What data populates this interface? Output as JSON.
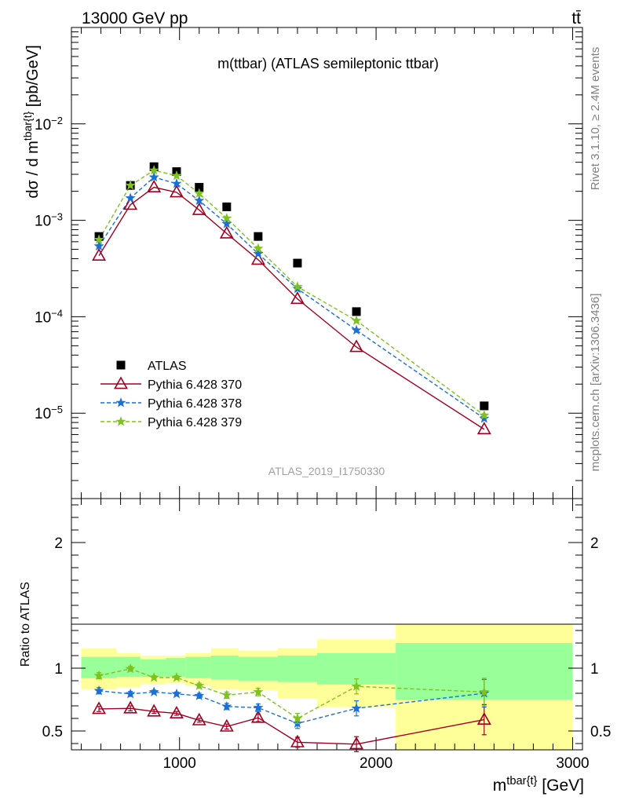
{
  "header": {
    "left": "13000 GeV pp",
    "right": "tt̄"
  },
  "side": {
    "rivet": "Rivet 3.1.10, ≥ 2.4M events",
    "mcplots": "mcplots.cern.ch [arXiv:1306.3436]"
  },
  "chart_data": [
    {
      "type": "scatter",
      "title": "m(ttbar) (ATLAS semileptonic ttbar)",
      "watermark": "ATLAS_2019_I1750330",
      "ylabel": "dσ / d m^{tbar{t}} [pb/GeV]",
      "yscale": "log",
      "xlim": [
        450,
        3050
      ],
      "ylim": [
        1.3e-06,
        0.1
      ],
      "ytick_labels": [
        {
          "base": "10",
          "exp": "−2",
          "value": 0.01
        },
        {
          "base": "10",
          "exp": "−3",
          "value": 0.001
        },
        {
          "base": "10",
          "exp": "−4",
          "value": 0.0001
        },
        {
          "base": "10",
          "exp": "−5",
          "value": 1e-05
        }
      ],
      "x": [
        590,
        750,
        870,
        985,
        1100,
        1240,
        1400,
        1600,
        1900,
        2550
      ],
      "series": [
        {
          "name": "ATLAS",
          "color": "#000000",
          "marker": "square",
          "values": [
            0.00068,
            0.0023,
            0.0036,
            0.0032,
            0.0022,
            0.00138,
            0.00068,
            0.00036,
            0.000113,
            1.19e-05
          ]
        },
        {
          "name": "Pythia 6.428 370",
          "color": "#a00020",
          "marker": "open-triangle",
          "line": "solid",
          "values": [
            0.00043,
            0.00145,
            0.0022,
            0.00195,
            0.00128,
            0.00073,
            0.00039,
            0.000153,
            4.85e-05,
            6.8e-06
          ]
        },
        {
          "name": "Pythia 6.428 378",
          "color": "#1a6fd8",
          "marker": "star",
          "line": "dashed",
          "values": [
            0.00054,
            0.0017,
            0.0028,
            0.0024,
            0.0016,
            0.00092,
            0.00045,
            0.000195,
            7.25e-05,
            8.8e-06
          ]
        },
        {
          "name": "Pythia 6.428 379",
          "color": "#7ec21f",
          "marker": "star",
          "line": "dashed",
          "values": [
            0.00063,
            0.0023,
            0.0033,
            0.0029,
            0.0019,
            0.00105,
            0.00051,
            0.000205,
            9.1e-05,
            9.5e-06
          ]
        }
      ]
    },
    {
      "type": "scatter",
      "xlabel": "m^{tbar{t}} [GeV]",
      "ylabel": "Ratio to ATLAS",
      "xlim": [
        450,
        3050
      ],
      "ylim": [
        0.35,
        2.35
      ],
      "xtick_labels": [
        "1000",
        "2000",
        "3000"
      ],
      "ytick_labels": [
        "0.5",
        "1",
        "2"
      ],
      "bins": [
        {
          "lo": 500,
          "hi": 680,
          "stat": [
            0.92,
            1.09
          ],
          "total": [
            0.83,
            1.16
          ]
        },
        {
          "lo": 680,
          "hi": 800,
          "stat": [
            0.93,
            1.09
          ],
          "total": [
            0.85,
            1.12
          ]
        },
        {
          "lo": 800,
          "hi": 930,
          "stat": [
            0.93,
            1.07
          ],
          "total": [
            0.87,
            1.1
          ]
        },
        {
          "lo": 930,
          "hi": 1030,
          "stat": [
            0.93,
            1.08
          ],
          "total": [
            0.88,
            1.1
          ]
        },
        {
          "lo": 1030,
          "hi": 1160,
          "stat": [
            0.92,
            1.09
          ],
          "total": [
            0.86,
            1.12
          ]
        },
        {
          "lo": 1160,
          "hi": 1300,
          "stat": [
            0.91,
            1.1
          ],
          "total": [
            0.83,
            1.16
          ]
        },
        {
          "lo": 1300,
          "hi": 1500,
          "stat": [
            0.9,
            1.09
          ],
          "total": [
            0.82,
            1.14
          ]
        },
        {
          "lo": 1500,
          "hi": 1700,
          "stat": [
            0.89,
            1.1
          ],
          "total": [
            0.76,
            1.16
          ]
        },
        {
          "lo": 1700,
          "hi": 2100,
          "stat": [
            0.87,
            1.12
          ],
          "total": [
            0.69,
            1.23
          ]
        },
        {
          "lo": 2100,
          "hi": 3000,
          "stat": [
            0.75,
            1.2
          ],
          "total": [
            0.35,
            1.35
          ]
        }
      ],
      "x": [
        590,
        750,
        870,
        985,
        1100,
        1240,
        1400,
        1600,
        1900,
        2550
      ],
      "series": [
        {
          "name": "Pythia 6.428 370",
          "color": "#a00020",
          "marker": "open-triangle",
          "values": [
            0.675,
            0.68,
            0.655,
            0.64,
            0.585,
            0.535,
            0.605,
            0.41,
            0.395,
            0.59
          ],
          "err": [
            0.02,
            0.02,
            0.015,
            0.015,
            0.015,
            0.02,
            0.03,
            0.04,
            0.06,
            0.12
          ]
        },
        {
          "name": "Pythia 6.428 378",
          "color": "#1a6fd8",
          "marker": "star",
          "values": [
            0.82,
            0.795,
            0.81,
            0.795,
            0.78,
            0.695,
            0.685,
            0.56,
            0.68,
            0.8
          ],
          "err": [
            0.025,
            0.02,
            0.015,
            0.015,
            0.02,
            0.025,
            0.03,
            0.04,
            0.06,
            0.11
          ]
        },
        {
          "name": "Pythia 6.428 379",
          "color": "#7ec21f",
          "marker": "star",
          "values": [
            0.94,
            0.995,
            0.925,
            0.925,
            0.86,
            0.785,
            0.81,
            0.6,
            0.855,
            0.81
          ],
          "err": [
            0.025,
            0.02,
            0.015,
            0.015,
            0.02,
            0.025,
            0.03,
            0.04,
            0.06,
            0.11
          ]
        }
      ]
    }
  ]
}
